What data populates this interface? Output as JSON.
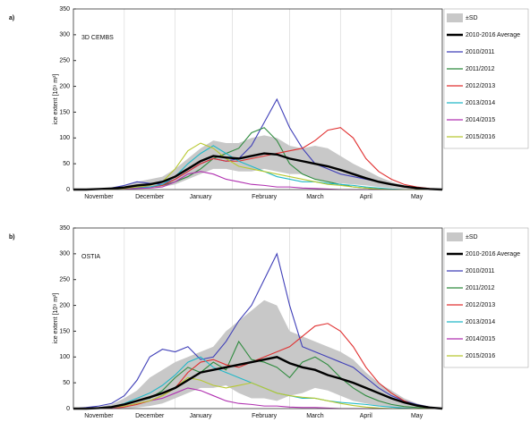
{
  "chart_data": [
    {
      "type": "line",
      "panel_label": "a)",
      "title": "3D CEMBS",
      "y_label": "ice extent [10⁹ m²]",
      "categories": [
        null,
        null,
        "November",
        null,
        null,
        null,
        "December",
        null,
        null,
        null,
        "January",
        null,
        null,
        null,
        null,
        "February",
        null,
        null,
        null,
        "March",
        null,
        null,
        null,
        "April",
        null,
        null,
        null,
        "May",
        null,
        null
      ],
      "ylim": [
        0,
        350
      ],
      "yticks": [
        0,
        50,
        100,
        150,
        200,
        250,
        300,
        350
      ],
      "grid": true,
      "series": [
        {
          "name": "±SD",
          "color": "#c8c8c8",
          "upper": [
            0,
            0,
            2,
            4,
            8,
            15,
            20,
            25,
            40,
            60,
            80,
            95,
            90,
            90,
            100,
            105,
            100,
            85,
            80,
            85,
            80,
            65,
            50,
            38,
            25,
            15,
            8,
            4,
            1,
            0
          ],
          "lower": [
            0,
            0,
            0,
            0,
            0,
            2,
            3,
            5,
            10,
            20,
            30,
            40,
            40,
            35,
            35,
            40,
            35,
            30,
            30,
            20,
            15,
            12,
            10,
            8,
            5,
            3,
            2,
            1,
            0,
            0
          ]
        },
        {
          "name": "2010-2016 Average",
          "color": "#000000",
          "values": [
            0,
            0,
            1,
            2,
            4,
            8,
            10,
            15,
            25,
            40,
            55,
            65,
            62,
            60,
            65,
            70,
            68,
            60,
            55,
            50,
            45,
            38,
            30,
            22,
            15,
            10,
            6,
            3,
            1,
            0
          ]
        },
        {
          "name": "2010/2011",
          "color": "#3f3fb8",
          "values": [
            0,
            0,
            1,
            3,
            8,
            15,
            12,
            10,
            20,
            35,
            50,
            60,
            55,
            60,
            85,
            130,
            175,
            120,
            80,
            50,
            40,
            30,
            25,
            20,
            15,
            10,
            5,
            2,
            0,
            0
          ]
        },
        {
          "name": "2011/2012",
          "color": "#2e8b3e",
          "values": [
            0,
            0,
            0,
            0,
            2,
            5,
            5,
            8,
            15,
            25,
            40,
            60,
            70,
            80,
            110,
            120,
            95,
            50,
            30,
            20,
            15,
            10,
            5,
            3,
            1,
            0,
            0,
            0,
            0,
            0
          ]
        },
        {
          "name": "2012/2013",
          "color": "#e03030",
          "values": [
            0,
            0,
            0,
            0,
            2,
            4,
            5,
            8,
            20,
            35,
            50,
            60,
            55,
            55,
            60,
            65,
            70,
            75,
            80,
            95,
            115,
            120,
            100,
            60,
            35,
            20,
            10,
            5,
            2,
            0
          ]
        },
        {
          "name": "2013/2014",
          "color": "#20b8c8",
          "values": [
            0,
            0,
            0,
            0,
            1,
            3,
            5,
            10,
            25,
            50,
            70,
            85,
            70,
            55,
            45,
            35,
            25,
            20,
            15,
            15,
            12,
            10,
            8,
            5,
            3,
            1,
            0,
            0,
            0,
            0
          ]
        },
        {
          "name": "2014/2015",
          "color": "#b030b0",
          "values": [
            0,
            0,
            0,
            0,
            1,
            2,
            3,
            5,
            15,
            30,
            35,
            30,
            20,
            15,
            10,
            8,
            5,
            5,
            3,
            2,
            1,
            0,
            0,
            0,
            0,
            0,
            0,
            0,
            0,
            0
          ]
        },
        {
          "name": "2015/2016",
          "color": "#b8c830",
          "values": [
            0,
            0,
            0,
            0,
            2,
            5,
            8,
            15,
            40,
            75,
            90,
            80,
            60,
            45,
            40,
            35,
            30,
            25,
            20,
            15,
            10,
            8,
            5,
            3,
            1,
            0,
            0,
            0,
            0,
            0
          ]
        }
      ]
    },
    {
      "type": "line",
      "panel_label": "b)",
      "title": "OSTIA",
      "y_label": "ice extent [10⁹ m²]",
      "categories": [
        null,
        null,
        "November",
        null,
        null,
        null,
        "December",
        null,
        null,
        null,
        "January",
        null,
        null,
        null,
        null,
        "February",
        null,
        null,
        null,
        "March",
        null,
        null,
        null,
        "April",
        null,
        null,
        null,
        "May",
        null,
        null
      ],
      "ylim": [
        0,
        350
      ],
      "yticks": [
        0,
        50,
        100,
        150,
        200,
        250,
        300,
        350
      ],
      "grid": true,
      "series": [
        {
          "name": "±SD",
          "color": "#c8c8c8",
          "upper": [
            0,
            1,
            3,
            8,
            20,
            35,
            60,
            75,
            90,
            100,
            110,
            120,
            150,
            170,
            190,
            210,
            200,
            150,
            140,
            130,
            120,
            110,
            95,
            70,
            50,
            35,
            20,
            10,
            4,
            0
          ],
          "lower": [
            0,
            0,
            0,
            0,
            0,
            2,
            5,
            10,
            20,
            30,
            40,
            40,
            45,
            30,
            20,
            20,
            15,
            25,
            30,
            40,
            35,
            25,
            15,
            10,
            5,
            3,
            1,
            0,
            0,
            0
          ]
        },
        {
          "name": "2010-2016 Average",
          "color": "#000000",
          "values": [
            0,
            0,
            1,
            3,
            8,
            15,
            22,
            30,
            40,
            55,
            70,
            75,
            80,
            85,
            90,
            95,
            100,
            88,
            80,
            75,
            65,
            58,
            50,
            40,
            30,
            20,
            12,
            6,
            2,
            0
          ]
        },
        {
          "name": "2010/2011",
          "color": "#3f3fb8",
          "values": [
            0,
            2,
            5,
            10,
            25,
            55,
            100,
            115,
            110,
            120,
            95,
            100,
            130,
            170,
            200,
            250,
            300,
            200,
            120,
            110,
            100,
            90,
            80,
            60,
            40,
            25,
            15,
            8,
            3,
            0
          ]
        },
        {
          "name": "2011/2012",
          "color": "#2e8b3e",
          "values": [
            0,
            0,
            0,
            2,
            8,
            15,
            20,
            35,
            60,
            80,
            70,
            90,
            75,
            130,
            95,
            90,
            80,
            60,
            90,
            100,
            85,
            60,
            40,
            25,
            15,
            8,
            4,
            2,
            0,
            0
          ]
        },
        {
          "name": "2012/2013",
          "color": "#e03030",
          "values": [
            0,
            0,
            0,
            0,
            3,
            8,
            15,
            25,
            40,
            70,
            90,
            95,
            85,
            80,
            90,
            100,
            110,
            120,
            140,
            160,
            165,
            150,
            120,
            80,
            50,
            30,
            15,
            5,
            2,
            0
          ]
        },
        {
          "name": "2013/2014",
          "color": "#20b8c8",
          "values": [
            0,
            0,
            1,
            3,
            10,
            20,
            30,
            45,
            65,
            90,
            100,
            80,
            70,
            60,
            50,
            40,
            30,
            25,
            20,
            20,
            15,
            12,
            10,
            8,
            5,
            3,
            1,
            0,
            0,
            0
          ]
        },
        {
          "name": "2014/2015",
          "color": "#b030b0",
          "values": [
            0,
            0,
            0,
            1,
            5,
            10,
            15,
            20,
            30,
            40,
            35,
            25,
            15,
            10,
            8,
            5,
            5,
            3,
            2,
            2,
            1,
            0,
            0,
            0,
            0,
            0,
            0,
            0,
            0,
            0
          ]
        },
        {
          "name": "2015/2016",
          "color": "#b8c830",
          "values": [
            0,
            0,
            0,
            2,
            5,
            10,
            15,
            25,
            40,
            60,
            55,
            45,
            40,
            45,
            50,
            40,
            30,
            25,
            22,
            20,
            15,
            10,
            6,
            3,
            1,
            0,
            0,
            0,
            0,
            0
          ]
        }
      ]
    }
  ]
}
